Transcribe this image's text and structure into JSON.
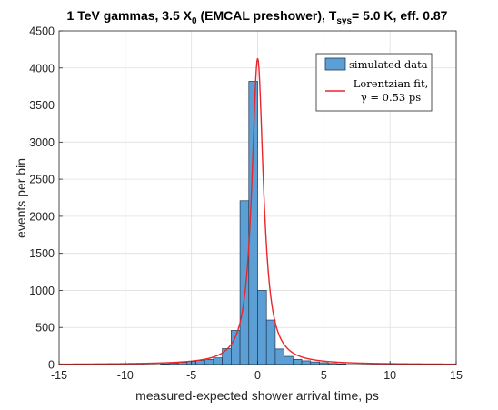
{
  "chart_data": {
    "type": "bar",
    "title": "1 TeV gammas, 3.5 X",
    "title_parts": {
      "main": "1 TeV gammas, 3.5 X",
      "sub0": "0",
      "mid": " (EMCAL preshower), T",
      "subsys": "sys",
      "end": "= 5.0 K, eff. 0.87"
    },
    "xlabel": "measured-expected shower arrival time, ps",
    "ylabel": "events per bin",
    "xlim": [
      -15,
      15
    ],
    "ylim": [
      0,
      4500
    ],
    "xticks": [
      -15,
      -10,
      -5,
      0,
      5,
      10,
      15
    ],
    "yticks": [
      0,
      500,
      1000,
      1500,
      2000,
      2500,
      3000,
      3500,
      4000,
      4500
    ],
    "grid": true,
    "legend_position": "top-right",
    "bin_width": 0.667,
    "series": [
      {
        "name": "simulated data",
        "type": "histogram",
        "color": "#5b9fd5",
        "edge_color": "#1f3b57",
        "bins": [
          {
            "x0": -7.333,
            "x1": -6.667,
            "count": 10
          },
          {
            "x0": -6.667,
            "x1": -6.0,
            "count": 20
          },
          {
            "x0": -6.0,
            "x1": -5.333,
            "count": 30
          },
          {
            "x0": -5.333,
            "x1": -4.667,
            "count": 40
          },
          {
            "x0": -4.667,
            "x1": -4.0,
            "count": 55
          },
          {
            "x0": -4.0,
            "x1": -3.333,
            "count": 70
          },
          {
            "x0": -3.333,
            "x1": -2.667,
            "count": 90
          },
          {
            "x0": -2.667,
            "x1": -2.0,
            "count": 215
          },
          {
            "x0": -2.0,
            "x1": -1.333,
            "count": 460
          },
          {
            "x0": -1.333,
            "x1": -0.667,
            "count": 2210
          },
          {
            "x0": -0.667,
            "x1": 0.0,
            "count": 3820
          },
          {
            "x0": 0.0,
            "x1": 0.667,
            "count": 1000
          },
          {
            "x0": 0.667,
            "x1": 1.333,
            "count": 600
          },
          {
            "x0": 1.333,
            "x1": 2.0,
            "count": 210
          },
          {
            "x0": 2.0,
            "x1": 2.667,
            "count": 110
          },
          {
            "x0": 2.667,
            "x1": 3.333,
            "count": 70
          },
          {
            "x0": 3.333,
            "x1": 4.0,
            "count": 50
          },
          {
            "x0": 4.0,
            "x1": 4.667,
            "count": 35
          },
          {
            "x0": 4.667,
            "x1": 5.333,
            "count": 25
          },
          {
            "x0": 5.333,
            "x1": 6.0,
            "count": 15
          },
          {
            "x0": 6.0,
            "x1": 6.667,
            "count": 10
          }
        ]
      },
      {
        "name": "Lorentzian fit,",
        "name_line2": "γ = 0.53 ps",
        "type": "line",
        "color": "#e8262b",
        "function": "lorentzian",
        "x0": 0.0,
        "gamma_ps": 0.53,
        "peak": 4130
      }
    ]
  }
}
